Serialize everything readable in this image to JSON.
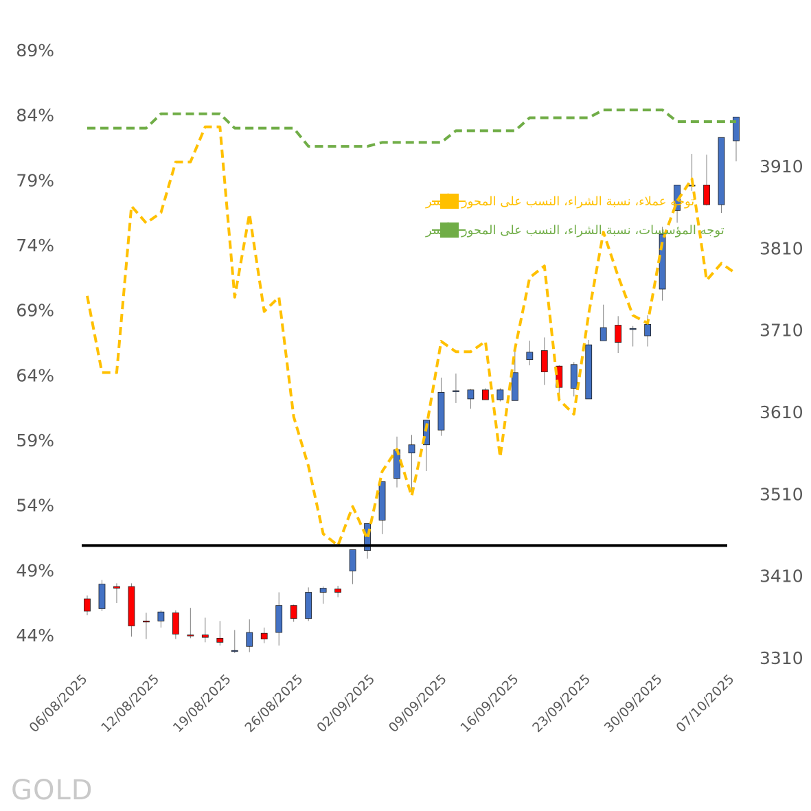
{
  "chart_data": {
    "type": "candlestick_with_lines",
    "watermark": "GOLD",
    "left_axis": {
      "ticks": [
        "89%",
        "84%",
        "79%",
        "74%",
        "69%",
        "64%",
        "59%",
        "54%",
        "49%",
        "44%"
      ],
      "range": [
        44,
        89
      ]
    },
    "right_axis": {
      "ticks": [
        "3910",
        "3810",
        "3710",
        "3610",
        "3510",
        "3410",
        "3310"
      ],
      "range": [
        3310,
        3910
      ]
    },
    "x_tick_labels": [
      "06/08/2025",
      "12/08/2025",
      "19/08/2025",
      "26/08/2025",
      "02/09/2025",
      "09/09/2025",
      "16/09/2025",
      "23/09/2025",
      "30/09/2025",
      "07/10/2025"
    ],
    "reference_line_pct": 50.9,
    "legend": [
      {
        "label": "توجه عملاء، نسبة الشراء، النسب على المحور الأيسر",
        "color": "#FFC000"
      },
      {
        "label": "توجه المؤسسات، نسبة الشراء، النسب على المحور الأيسر",
        "color": "#70AD47"
      }
    ],
    "series": [
      {
        "name": "توجه عملاء، نسبة الشراء، النسب على المحور الأيسر",
        "color": "#FFC000",
        "values": [
          70.1,
          64.2,
          64.2,
          77.0,
          75.7,
          76.5,
          80.4,
          80.4,
          83.1,
          83.1,
          70.0,
          76.4,
          68.9,
          70.0,
          60.8,
          57.0,
          51.8,
          50.9,
          53.9,
          51.4,
          56.6,
          58.3,
          54.7,
          60.0,
          66.6,
          65.8,
          65.8,
          66.6,
          57.7,
          66.0,
          71.5,
          72.4,
          62.1,
          61.0,
          68.7,
          75.0,
          71.6,
          68.6,
          68.0,
          74.3,
          77.4,
          79.1,
          71.3,
          72.6,
          71.8
        ]
      },
      {
        "name": "توجه المؤسسات، نسبة الشراء، النسب على المحور الأيسر",
        "color": "#70AD47",
        "values": [
          83.0,
          83.0,
          83.0,
          83.0,
          83.0,
          84.1,
          84.1,
          84.1,
          84.1,
          84.1,
          83.0,
          83.0,
          83.0,
          83.0,
          83.0,
          81.6,
          81.6,
          81.6,
          81.6,
          81.6,
          81.9,
          81.9,
          81.9,
          81.9,
          81.9,
          82.8,
          82.8,
          82.8,
          82.8,
          82.8,
          83.8,
          83.8,
          83.8,
          83.8,
          83.8,
          84.4,
          84.4,
          84.4,
          84.4,
          84.4,
          83.5,
          83.5,
          83.5,
          83.5,
          83.5
        ]
      }
    ],
    "candles": {
      "dates": [
        "06/08",
        "07/08",
        "08/08",
        "11/08",
        "12/08",
        "13/08",
        "14/08",
        "15/08",
        "18/08",
        "19/08",
        "20/08",
        "21/08",
        "22/08",
        "25/08",
        "26/08",
        "27/08",
        "28/08",
        "29/08",
        "01/09",
        "02/09",
        "03/09",
        "04/09",
        "05/09",
        "08/09",
        "09/09",
        "10/09",
        "11/09",
        "12/09",
        "15/09",
        "16/09",
        "17/09",
        "18/09",
        "19/09",
        "22/09",
        "23/09",
        "24/09",
        "25/09",
        "26/09",
        "29/09",
        "30/09",
        "01/10",
        "02/10",
        "03/10",
        "06/10",
        "07/10"
      ],
      "open": [
        3382,
        3370,
        3397,
        3397,
        3355,
        3355,
        3365,
        3338,
        3338,
        3334,
        3318,
        3324,
        3340,
        3341,
        3374,
        3358,
        3390,
        3394,
        3416,
        3441,
        3478,
        3529,
        3560,
        3570,
        3588,
        3636,
        3626,
        3637,
        3625,
        3624,
        3674,
        3685,
        3666,
        3639,
        3626,
        3697,
        3716,
        3712,
        3703,
        3760,
        3856,
        3887,
        3887,
        3863,
        3941
      ],
      "high": [
        3386,
        3405,
        3401,
        3401,
        3365,
        3368,
        3368,
        3371,
        3359,
        3355,
        3344,
        3357,
        3347,
        3390,
        3375,
        3396,
        3397,
        3398,
        3432,
        3465,
        3493,
        3580,
        3582,
        3595,
        3652,
        3657,
        3638,
        3639,
        3639,
        3685,
        3697,
        3701,
        3667,
        3671,
        3698,
        3741,
        3727,
        3715,
        3728,
        3836,
        3873,
        3925,
        3924,
        3890,
        3948
      ],
      "low": [
        3362,
        3367,
        3377,
        3336,
        3333,
        3347,
        3333,
        3334,
        3329,
        3325,
        3316,
        3317,
        3328,
        3325,
        3354,
        3355,
        3376,
        3384,
        3400,
        3431,
        3461,
        3518,
        3510,
        3538,
        3581,
        3621,
        3614,
        3625,
        3623,
        3640,
        3667,
        3643,
        3628,
        3629,
        3670,
        3702,
        3682,
        3690,
        3690,
        3746,
        3841,
        3880,
        3862,
        3853,
        3916
      ],
      "close": [
        3367,
        3400,
        3395,
        3349,
        3354,
        3366,
        3339,
        3337,
        3335,
        3329,
        3319,
        3341,
        3333,
        3374,
        3358,
        3390,
        3395,
        3390,
        3442,
        3474,
        3525,
        3564,
        3570,
        3600,
        3634,
        3636,
        3637,
        3625,
        3637,
        3658,
        3683,
        3659,
        3640,
        3668,
        3692,
        3713,
        3695,
        3712,
        3717,
        3827,
        3887,
        3887,
        3863,
        3945,
        3970
      ]
    }
  }
}
